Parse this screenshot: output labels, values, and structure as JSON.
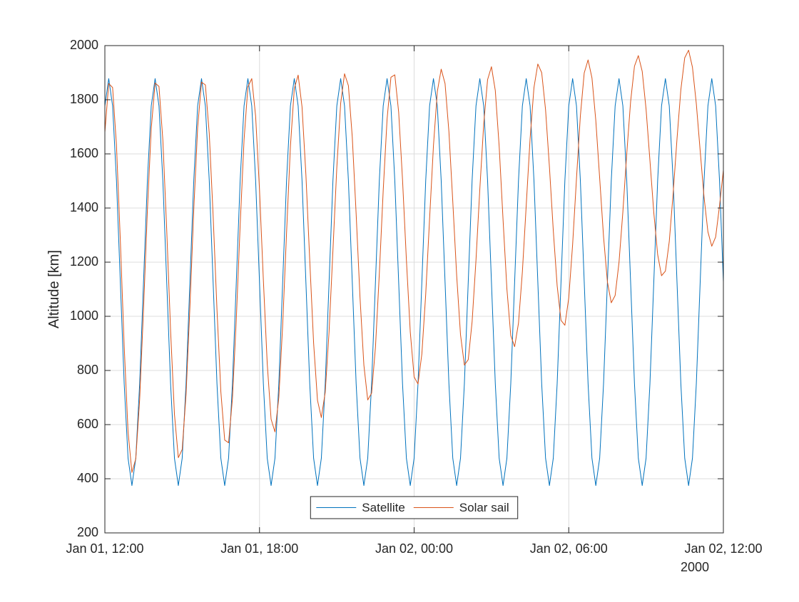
{
  "chart_data": {
    "type": "line",
    "y_label": "Altitude [km]",
    "x_secondary_label": "2000",
    "xlim": [
      "2000-01-01T12:00",
      "2000-01-02T12:00"
    ],
    "xticks": [
      {
        "value": "2000-01-01T12:00",
        "label": "Jan 01, 12:00"
      },
      {
        "value": "2000-01-01T18:00",
        "label": "Jan 01, 18:00"
      },
      {
        "value": "2000-01-02T00:00",
        "label": "Jan 02, 00:00"
      },
      {
        "value": "2000-01-02T06:00",
        "label": "Jan 02, 06:00"
      },
      {
        "value": "2000-01-02T12:00",
        "label": "Jan 02, 12:00"
      }
    ],
    "ylim": [
      200,
      2000
    ],
    "yticks": [
      200,
      400,
      600,
      800,
      1000,
      1200,
      1400,
      1600,
      1800,
      2000
    ],
    "grid": true,
    "legend": "lower center",
    "x": [
      "2000-01-01T12:00",
      "2000-01-01T12:09",
      "2000-01-01T12:18",
      "2000-01-01T12:27",
      "2000-01-01T12:36",
      "2000-01-01T12:45",
      "2000-01-01T12:54",
      "2000-01-01T13:03",
      "2000-01-01T13:12",
      "2000-01-01T13:21",
      "2000-01-01T13:30",
      "2000-01-01T13:39",
      "2000-01-01T13:48",
      "2000-01-01T13:57",
      "2000-01-01T14:06",
      "2000-01-01T14:15",
      "2000-01-01T14:24",
      "2000-01-01T14:33",
      "2000-01-01T14:42",
      "2000-01-01T14:51",
      "2000-01-01T15:00",
      "2000-01-01T15:09",
      "2000-01-01T15:18",
      "2000-01-01T15:27",
      "2000-01-01T15:36",
      "2000-01-01T15:45",
      "2000-01-01T15:54",
      "2000-01-01T16:03",
      "2000-01-01T16:12",
      "2000-01-01T16:21",
      "2000-01-01T16:30",
      "2000-01-01T16:39",
      "2000-01-01T16:48",
      "2000-01-01T16:57",
      "2000-01-01T17:06",
      "2000-01-01T17:15",
      "2000-01-01T17:24",
      "2000-01-01T17:33",
      "2000-01-01T17:42",
      "2000-01-01T17:51",
      "2000-01-01T18:00",
      "2000-01-01T18:09",
      "2000-01-01T18:18",
      "2000-01-01T18:27",
      "2000-01-01T18:36",
      "2000-01-01T18:45",
      "2000-01-01T18:54",
      "2000-01-01T19:03",
      "2000-01-01T19:12",
      "2000-01-01T19:21",
      "2000-01-01T19:30",
      "2000-01-01T19:39",
      "2000-01-01T19:48",
      "2000-01-01T19:57",
      "2000-01-01T20:06",
      "2000-01-01T20:15",
      "2000-01-01T20:24",
      "2000-01-01T20:33",
      "2000-01-01T20:42",
      "2000-01-01T20:51",
      "2000-01-01T21:00",
      "2000-01-01T21:09",
      "2000-01-01T21:18",
      "2000-01-01T21:27",
      "2000-01-01T21:36",
      "2000-01-01T21:45",
      "2000-01-01T21:54",
      "2000-01-01T22:03",
      "2000-01-01T22:12",
      "2000-01-01T22:21",
      "2000-01-01T22:30",
      "2000-01-01T22:39",
      "2000-01-01T22:48",
      "2000-01-01T22:57",
      "2000-01-01T23:06",
      "2000-01-01T23:15",
      "2000-01-01T23:24",
      "2000-01-01T23:33",
      "2000-01-01T23:42",
      "2000-01-01T23:51",
      "2000-01-02T00:00",
      "2000-01-02T00:09",
      "2000-01-02T00:18",
      "2000-01-02T00:27",
      "2000-01-02T00:36",
      "2000-01-02T00:45",
      "2000-01-02T00:54",
      "2000-01-02T01:03",
      "2000-01-02T01:12",
      "2000-01-02T01:21",
      "2000-01-02T01:30",
      "2000-01-02T01:39",
      "2000-01-02T01:48",
      "2000-01-02T01:57",
      "2000-01-02T02:06",
      "2000-01-02T02:15",
      "2000-01-02T02:24",
      "2000-01-02T02:33",
      "2000-01-02T02:42",
      "2000-01-02T02:51",
      "2000-01-02T03:00",
      "2000-01-02T03:09",
      "2000-01-02T03:18",
      "2000-01-02T03:27",
      "2000-01-02T03:36",
      "2000-01-02T03:45",
      "2000-01-02T03:54",
      "2000-01-02T04:03",
      "2000-01-02T04:12",
      "2000-01-02T04:21",
      "2000-01-02T04:30",
      "2000-01-02T04:39",
      "2000-01-02T04:48",
      "2000-01-02T04:57",
      "2000-01-02T05:06",
      "2000-01-02T05:15",
      "2000-01-02T05:24",
      "2000-01-02T05:33",
      "2000-01-02T05:42",
      "2000-01-02T05:51",
      "2000-01-02T06:00",
      "2000-01-02T06:09",
      "2000-01-02T06:18",
      "2000-01-02T06:27",
      "2000-01-02T06:36",
      "2000-01-02T06:45",
      "2000-01-02T06:54",
      "2000-01-02T07:03",
      "2000-01-02T07:12",
      "2000-01-02T07:21",
      "2000-01-02T07:30",
      "2000-01-02T07:39",
      "2000-01-02T07:48",
      "2000-01-02T07:57",
      "2000-01-02T08:06",
      "2000-01-02T08:15",
      "2000-01-02T08:24",
      "2000-01-02T08:33",
      "2000-01-02T08:42",
      "2000-01-02T08:51",
      "2000-01-02T09:00",
      "2000-01-02T09:09",
      "2000-01-02T09:18",
      "2000-01-02T09:27",
      "2000-01-02T09:36",
      "2000-01-02T09:45",
      "2000-01-02T09:54",
      "2000-01-02T10:03",
      "2000-01-02T10:12",
      "2000-01-02T10:21",
      "2000-01-02T10:30",
      "2000-01-02T10:39",
      "2000-01-02T10:48",
      "2000-01-02T10:57",
      "2000-01-02T11:06",
      "2000-01-02T11:15",
      "2000-01-02T11:24",
      "2000-01-02T11:33",
      "2000-01-02T11:42",
      "2000-01-02T11:51",
      "2000-01-02T12:00"
    ],
    "series": [
      {
        "name": "Satellite",
        "color": "#0072BD",
        "values": [
          1777,
          1878,
          1777,
          1502,
          1127,
          751,
          476,
          375,
          476,
          751,
          1127,
          1502,
          1777,
          1878,
          1777,
          1502,
          1127,
          751,
          476,
          375,
          476,
          751,
          1127,
          1502,
          1777,
          1878,
          1777,
          1502,
          1127,
          751,
          476,
          375,
          476,
          751,
          1127,
          1502,
          1777,
          1878,
          1777,
          1502,
          1127,
          751,
          476,
          375,
          476,
          751,
          1127,
          1502,
          1777,
          1878,
          1777,
          1502,
          1127,
          751,
          476,
          375,
          476,
          751,
          1127,
          1502,
          1777,
          1878,
          1777,
          1502,
          1127,
          751,
          476,
          375,
          476,
          751,
          1127,
          1502,
          1777,
          1878,
          1777,
          1502,
          1127,
          751,
          476,
          375,
          476,
          751,
          1127,
          1502,
          1777,
          1878,
          1777,
          1502,
          1127,
          751,
          476,
          375,
          476,
          751,
          1127,
          1502,
          1777,
          1878,
          1777,
          1502,
          1127,
          751,
          476,
          375,
          476,
          751,
          1127,
          1502,
          1777,
          1878,
          1777,
          1502,
          1127,
          751,
          476,
          375,
          476,
          751,
          1127,
          1502,
          1777,
          1878,
          1777,
          1502,
          1127,
          751,
          476,
          375,
          476,
          751,
          1127,
          1502,
          1777,
          1878,
          1777,
          1502,
          1127,
          751,
          476,
          375,
          476,
          751,
          1127,
          1502,
          1777,
          1878,
          1777,
          1502,
          1127,
          751,
          476,
          375,
          476,
          751,
          1127,
          1502,
          1777,
          1878,
          1777,
          1502,
          1127
        ]
      },
      {
        "name": "Solar sail",
        "color": "#D95319",
        "values": [
          1680,
          1860,
          1845,
          1632,
          1280,
          889,
          573,
          423,
          474,
          693,
          1027,
          1391,
          1694,
          1862,
          1849,
          1651,
          1319,
          947,
          638,
          478,
          508,
          711,
          1034,
          1394,
          1697,
          1865,
          1855,
          1676,
          1373,
          1025,
          722,
          543,
          533,
          696,
          990,
          1338,
          1651,
          1848,
          1878,
          1739,
          1468,
          1134,
          825,
          620,
          573,
          700,
          969,
          1309,
          1628,
          1841,
          1891,
          1774,
          1524,
          1206,
          901,
          690,
          626,
          719,
          944,
          1245,
          1550,
          1787,
          1896,
          1852,
          1662,
          1378,
          1070,
          820,
          691,
          716,
          886,
          1158,
          1464,
          1728,
          1883,
          1892,
          1754,
          1505,
          1209,
          943,
          776,
          750,
          861,
          1082,
          1360,
          1630,
          1830,
          1913,
          1860,
          1682,
          1424,
          1152,
          932,
          820,
          840,
          980,
          1207,
          1471,
          1710,
          1874,
          1922,
          1834,
          1628,
          1358,
          1101,
          929,
          888,
          975,
          1164,
          1410,
          1656,
          1845,
          1932,
          1900,
          1763,
          1552,
          1317,
          1113,
          985,
          967,
          1068,
          1265,
          1509,
          1740,
          1899,
          1947,
          1881,
          1723,
          1510,
          1294,
          1127,
          1050,
          1077,
          1199,
          1386,
          1600,
          1793,
          1924,
          1963,
          1905,
          1765,
          1576,
          1383,
          1228,
          1150,
          1167,
          1276,
          1453,
          1655,
          1837,
          1955,
          1983,
          1920,
          1785,
          1611,
          1440,
          1312,
          1259,
          1293,
          1408,
          1540
        ]
      }
    ]
  }
}
